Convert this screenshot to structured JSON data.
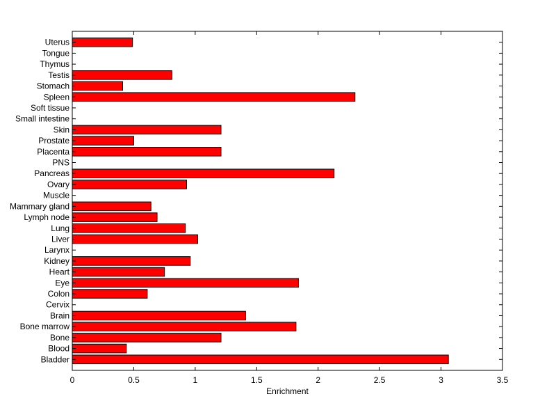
{
  "chart_data": {
    "type": "bar",
    "orientation": "horizontal",
    "title": "",
    "xlabel": "Enrichment",
    "ylabel": "",
    "xlim": [
      0,
      3.5
    ],
    "x_ticks": [
      0,
      0.5,
      1,
      1.5,
      2,
      2.5,
      3,
      3.5
    ],
    "x_tick_labels": [
      "0",
      "0.5",
      "1",
      "1.5",
      "2",
      "2.5",
      "3",
      "3.5"
    ],
    "grid": false,
    "categories": [
      "Bladder",
      "Blood",
      "Bone",
      "Bone marrow",
      "Brain",
      "Cervix",
      "Colon",
      "Eye",
      "Heart",
      "Kidney",
      "Larynx",
      "Liver",
      "Lung",
      "Lymph node",
      "Mammary gland",
      "Muscle",
      "Ovary",
      "Pancreas",
      "PNS",
      "Placenta",
      "Prostate",
      "Skin",
      "Small intestine",
      "Soft tissue",
      "Spleen",
      "Stomach",
      "Testis",
      "Thymus",
      "Tongue",
      "Uterus"
    ],
    "values": [
      3.06,
      0.44,
      1.21,
      1.82,
      1.41,
      0,
      0.61,
      1.84,
      0.75,
      0.96,
      0,
      1.02,
      0.92,
      0.69,
      0.64,
      0,
      0.93,
      2.13,
      0,
      1.21,
      0.5,
      1.21,
      0,
      0,
      2.3,
      0.41,
      0.81,
      0,
      0,
      0.49
    ],
    "bar_color": "#ff0000",
    "bar_edge_color": "#000000"
  }
}
